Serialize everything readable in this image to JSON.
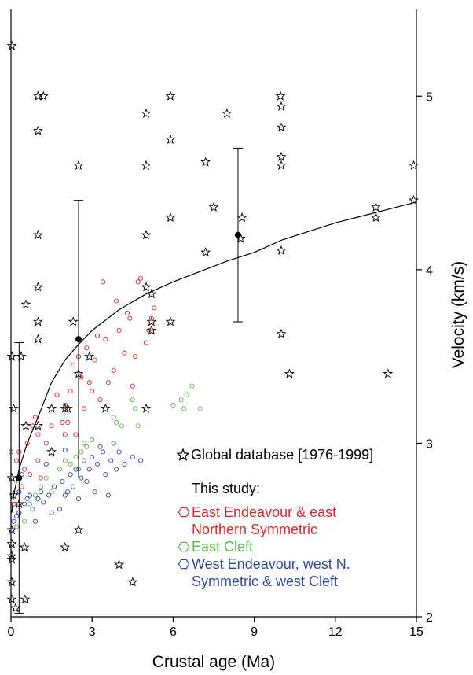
{
  "chart_data": {
    "type": "scatter",
    "x_label": "Crustal age (Ma)",
    "y_label": "Velocity (km/s)",
    "xlim": [
      0,
      15
    ],
    "xticks": [
      0,
      3,
      6,
      9,
      12,
      15
    ],
    "ylim": [
      2,
      5.5
    ],
    "yticks": [
      2,
      3,
      4,
      5
    ],
    "y_axis_side": "right",
    "legend_title": "This study:",
    "series": [
      {
        "name": "Global database [1976-1999]",
        "marker": "star",
        "color": "#000000",
        "x": [
          0.03,
          1.0,
          1.2,
          1.0,
          2.5,
          5.0,
          5.9,
          5.9,
          7.99,
          9.97,
          10,
          10,
          10,
          10,
          7.2,
          7.5,
          5.9,
          5.0,
          5.0,
          1.0,
          7.2,
          8.55,
          8.5,
          10,
          10,
          13.5,
          13.5,
          14.9,
          14.9,
          13.95,
          10.3,
          1.0,
          1.0,
          1.0,
          0.55,
          0.03,
          0.38,
          5.0,
          5.2,
          5.2,
          5.2,
          5.9,
          2.3,
          2.9,
          2.5,
          0.1,
          1.5,
          2.0,
          2.1,
          3.5,
          5.0,
          1.0,
          0.55,
          1.5,
          0.03,
          0.1,
          0.03,
          0.03,
          0.03,
          0.03,
          0.03,
          0.03,
          0.17,
          0.52,
          0.5,
          2.0,
          2.5,
          4.0,
          4.5,
          0.3
        ],
        "values": [
          5.29,
          5.0,
          5.0,
          4.8,
          4.6,
          4.9,
          5.0,
          4.75,
          4.9,
          5.0,
          4.94,
          4.82,
          4.65,
          4.6,
          4.62,
          4.36,
          4.3,
          4.6,
          4.2,
          4.2,
          4.1,
          4.3,
          4.18,
          4.11,
          3.63,
          4.36,
          4.3,
          4.6,
          4.4,
          3.4,
          3.4,
          3.9,
          3.7,
          3.6,
          3.8,
          3.5,
          3.5,
          3.9,
          3.86,
          3.7,
          3.65,
          3.7,
          3.7,
          3.5,
          3.4,
          3.2,
          3.2,
          3.2,
          3.2,
          3.2,
          3.2,
          3.1,
          3.1,
          2.95,
          2.8,
          2.7,
          2.5,
          2.42,
          2.35,
          2.33,
          2.2,
          2.1,
          2.05,
          2.1,
          2.4,
          2.4,
          2.5,
          2.3,
          2.2,
          2.65
        ]
      },
      {
        "name": "East Endeavour & east Northern Symmetric",
        "marker": "circle",
        "color": "#e8222a",
        "x": [
          0.2,
          0.3,
          0.5,
          0.6,
          0.8,
          0.9,
          1.0,
          1.1,
          1.3,
          1.5,
          1.7,
          1.9,
          2.0,
          2.1,
          2.2,
          2.3,
          2.4,
          2.5,
          2.6,
          2.7,
          2.8,
          2.9,
          3.0,
          3.1,
          3.3,
          3.4,
          3.5,
          3.6,
          3.8,
          3.9,
          4.0,
          4.2,
          4.3,
          4.4,
          4.6,
          4.7,
          4.8,
          5.0,
          5.1,
          5.2,
          5.3,
          4.5,
          0.1,
          0.4,
          1.0,
          0.7,
          2.0,
          3.2
        ],
        "values": [
          2.9,
          2.95,
          2.85,
          3.0,
          3.1,
          3.15,
          3.05,
          2.8,
          3.0,
          3.1,
          3.28,
          3.12,
          3.05,
          3.12,
          3.3,
          3.45,
          3.05,
          3.5,
          3.38,
          3.2,
          3.55,
          3.35,
          3.3,
          3.48,
          3.25,
          3.93,
          3.6,
          3.35,
          3.42,
          3.82,
          3.65,
          3.52,
          3.75,
          3.72,
          3.5,
          3.93,
          3.95,
          3.58,
          3.65,
          3.72,
          3.78,
          3.33,
          2.65,
          2.75,
          2.9,
          2.82,
          3.22,
          3.62
        ]
      },
      {
        "name": "East Cleft",
        "marker": "circle",
        "color": "#5cb849",
        "x": [
          0.3,
          0.5,
          0.7,
          0.9,
          1.1,
          1.3,
          1.5,
          1.8,
          2.0,
          2.2,
          2.4,
          2.6,
          2.8,
          3.0,
          2.7,
          2.5,
          3.9,
          4.1,
          4.5,
          4.7,
          6.0,
          6.3,
          6.5,
          6.7,
          7.0,
          6.4,
          1.0,
          0.2,
          3.8,
          4.6
        ],
        "values": [
          2.6,
          2.55,
          2.65,
          2.7,
          2.75,
          2.8,
          2.72,
          2.85,
          2.9,
          2.88,
          2.92,
          2.95,
          2.98,
          3.02,
          3.0,
          2.85,
          3.12,
          3.1,
          3.25,
          3.1,
          3.22,
          3.25,
          3.28,
          3.33,
          3.2,
          3.2,
          2.68,
          2.52,
          3.15,
          3.2
        ]
      },
      {
        "name": "West Endeavour, west N. Symmetric & west Cleft",
        "marker": "circle",
        "color": "#2e4aa8",
        "x": [
          0.0,
          0.1,
          0.2,
          0.3,
          0.5,
          0.6,
          0.7,
          0.8,
          1.0,
          1.1,
          1.2,
          1.4,
          1.5,
          1.6,
          1.8,
          1.9,
          2.0,
          2.1,
          2.2,
          2.3,
          2.4,
          2.5,
          2.6,
          2.7,
          2.8,
          2.9,
          3.0,
          3.1,
          3.2,
          3.3,
          3.4,
          3.5,
          3.6,
          3.7,
          3.8,
          3.9,
          4.0,
          4.2,
          4.5,
          4.8,
          0.0,
          0.4,
          1.3,
          0.3,
          2.0,
          0.9
        ],
        "values": [
          2.5,
          2.55,
          2.58,
          2.6,
          2.65,
          2.68,
          2.7,
          2.62,
          2.68,
          2.72,
          2.66,
          2.7,
          2.6,
          2.75,
          2.62,
          2.78,
          2.7,
          2.72,
          2.82,
          2.75,
          2.85,
          2.68,
          2.8,
          2.9,
          2.78,
          2.85,
          2.92,
          2.72,
          2.88,
          2.98,
          2.95,
          2.82,
          2.7,
          2.9,
          3.0,
          2.85,
          2.95,
          2.88,
          2.92,
          2.9,
          2.95,
          2.82,
          2.88,
          2.72,
          2.96,
          2.55
        ]
      },
      {
        "marker": "line",
        "color": "#000000",
        "x": [
          0.03,
          0.1,
          0.3,
          0.6,
          1,
          1.5,
          2,
          2.5,
          3,
          4,
          5,
          6,
          7,
          8,
          9,
          10,
          11,
          12,
          13,
          14,
          15
        ],
        "values": [
          2.6,
          2.7,
          2.85,
          3.0,
          3.15,
          3.35,
          3.48,
          3.57,
          3.65,
          3.77,
          3.86,
          3.93,
          3.99,
          4.05,
          4.1,
          4.17,
          4.22,
          4.27,
          4.31,
          4.35,
          4.39
        ]
      },
      {
        "marker": "errorbar",
        "color": "#000000",
        "x": [
          0.3,
          2.5,
          8.4
        ],
        "values": [
          2.8,
          3.6,
          4.2
        ],
        "errors": [
          0.78,
          0.8,
          0.5
        ]
      }
    ]
  }
}
